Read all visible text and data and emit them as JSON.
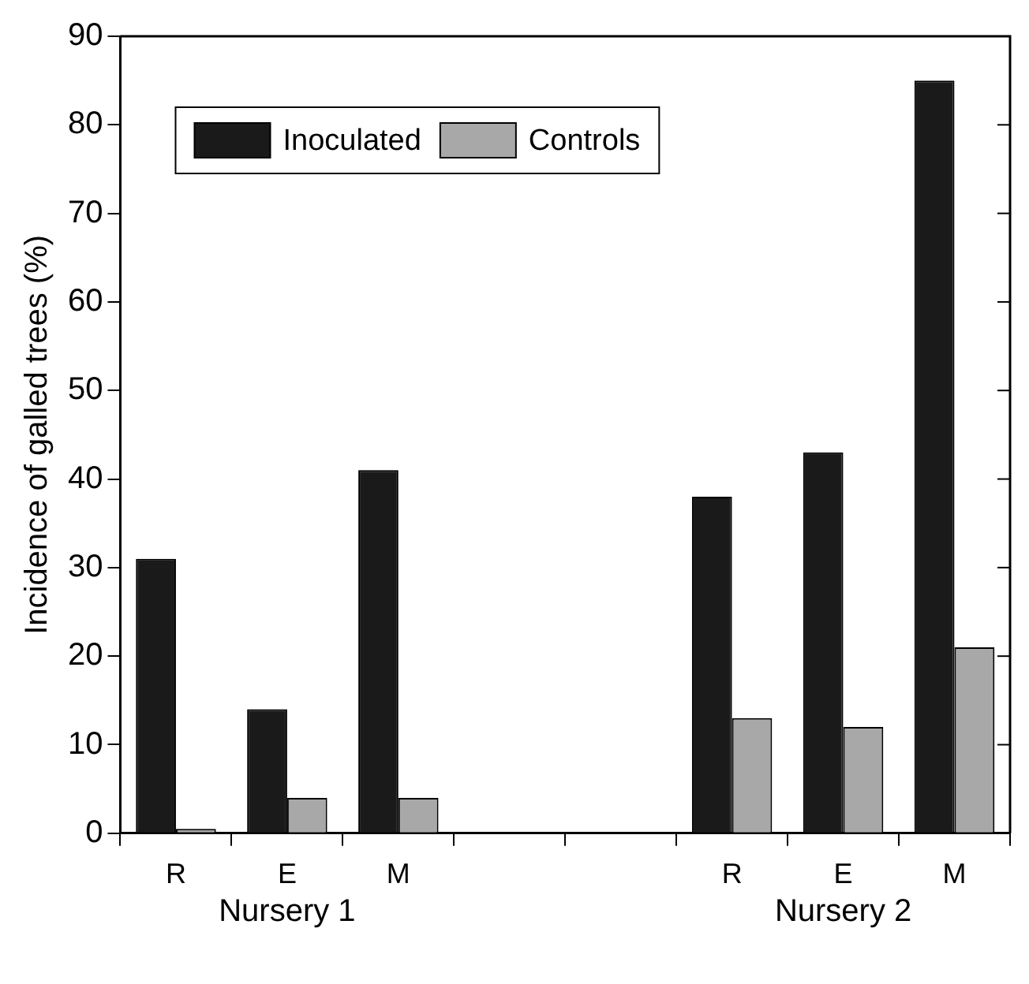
{
  "chart_data": {
    "type": "bar",
    "ylabel": "Incidence of galled trees (%)",
    "categories": [
      "R",
      "E",
      "M",
      null,
      null,
      "R",
      "E",
      "M"
    ],
    "series": [
      {
        "name": "Inoculated",
        "color": "#1a1a1a",
        "values": [
          31,
          14,
          41,
          null,
          null,
          38,
          43,
          85
        ]
      },
      {
        "name": "Controls",
        "color": "#a8a8a8",
        "values": [
          0.5,
          4,
          4,
          null,
          null,
          13,
          12,
          21
        ]
      }
    ],
    "ylim": [
      0,
      90
    ],
    "yticks": [
      0,
      10,
      20,
      30,
      40,
      50,
      60,
      70,
      80,
      90
    ],
    "grid": false,
    "legend": "top left",
    "annotations": [
      "Nursery 1",
      "Nursery 2"
    ]
  }
}
